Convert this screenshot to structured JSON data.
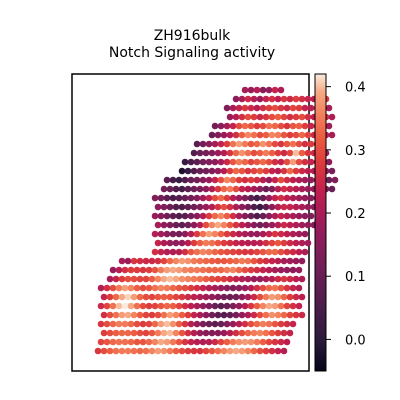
{
  "chart_data": {
    "type": "heatmap",
    "title": "ZH916bulk",
    "subtitle": "Notch Signaling activity",
    "colormap": "rocket",
    "colorbar": {
      "range": [
        -0.05,
        0.42
      ],
      "ticks": [
        {
          "value": 0.4,
          "label": "0.4"
        },
        {
          "value": 0.3,
          "label": "0.3"
        },
        {
          "value": 0.2,
          "label": "0.2"
        },
        {
          "value": 0.1,
          "label": "0.1"
        },
        {
          "value": 0.0,
          "label": "0.0"
        }
      ]
    },
    "spots_grid": {
      "rows": [
        {
          "row": 0,
          "cols": [
            27,
            33
          ],
          "values": [
            0.2,
            0.18,
            0.22,
            0.15,
            0.17,
            0.24,
            0.21
          ]
        },
        {
          "row": 1,
          "cols": [
            25,
            40
          ],
          "values": [
            0.16,
            0.2,
            0.25,
            0.22,
            0.18,
            0.24,
            0.26,
            0.23,
            0.27,
            0.25,
            0.28,
            0.26,
            0.24,
            0.22,
            0.25,
            0.27
          ]
        },
        {
          "row": 2,
          "cols": [
            24,
            41
          ],
          "values": [
            0.14,
            0.2,
            0.24,
            0.27,
            0.25,
            0.22,
            0.26,
            0.28,
            0.3,
            0.27,
            0.25,
            0.29,
            0.28,
            0.24,
            0.22,
            0.26,
            0.23,
            0.2
          ]
        },
        {
          "row": 3,
          "cols": [
            24,
            41
          ],
          "values": [
            0.18,
            0.22,
            0.26,
            0.3,
            0.28,
            0.25,
            0.27,
            0.3,
            0.32,
            0.29,
            0.26,
            0.28,
            0.3,
            0.26,
            0.23,
            0.27,
            0.25,
            0.21
          ]
        },
        {
          "row": 4,
          "cols": [
            22,
            41
          ],
          "values": [
            0.12,
            0.16,
            0.2,
            0.24,
            0.3,
            0.33,
            0.31,
            0.28,
            0.3,
            0.34,
            0.33,
            0.3,
            0.27,
            0.31,
            0.32,
            0.28,
            0.24,
            0.26,
            0.22,
            0.19
          ]
        },
        {
          "row": 5,
          "cols": [
            21,
            41
          ],
          "values": [
            0.1,
            0.14,
            0.18,
            0.22,
            0.26,
            0.32,
            0.36,
            0.34,
            0.3,
            0.32,
            0.36,
            0.35,
            0.31,
            0.28,
            0.3,
            0.33,
            0.29,
            0.25,
            0.27,
            0.23,
            0.2
          ]
        },
        {
          "row": 6,
          "cols": [
            19,
            40
          ],
          "values": [
            0.08,
            0.12,
            0.16,
            0.2,
            0.24,
            0.28,
            0.34,
            0.38,
            0.35,
            0.31,
            0.33,
            0.37,
            0.34,
            0.3,
            0.27,
            0.31,
            0.34,
            0.3,
            0.26,
            0.28,
            0.24,
            0.21
          ]
        },
        {
          "row": 7,
          "cols": [
            18,
            40
          ],
          "values": [
            0.06,
            0.1,
            0.12,
            0.15,
            0.18,
            0.22,
            0.27,
            0.33,
            0.37,
            0.34,
            0.3,
            0.32,
            0.35,
            0.32,
            0.28,
            0.25,
            0.29,
            0.4,
            0.32,
            0.27,
            0.25,
            0.22,
            0.18
          ]
        },
        {
          "row": 8,
          "cols": [
            17,
            41
          ],
          "values": [
            0.02,
            0.05,
            0.08,
            0.12,
            0.14,
            0.16,
            0.2,
            0.25,
            0.31,
            0.35,
            0.33,
            0.29,
            0.31,
            0.33,
            0.3,
            0.26,
            0.24,
            0.3,
            0.38,
            0.3,
            0.26,
            0.24,
            0.22,
            0.19,
            0.16
          ]
        },
        {
          "row": 9,
          "cols": [
            16,
            41
          ],
          "values": [
            -0.02,
            0.02,
            0.06,
            0.1,
            0.12,
            0.14,
            0.17,
            0.22,
            0.28,
            0.33,
            0.31,
            0.27,
            0.29,
            0.31,
            0.28,
            0.24,
            0.22,
            0.27,
            0.33,
            0.28,
            0.25,
            0.23,
            0.21,
            0.18,
            0.15,
            0.13
          ]
        },
        {
          "row": 10,
          "cols": [
            14,
            42
          ],
          "values": [
            0.08,
            0.04,
            0.02,
            0.06,
            0.1,
            0.12,
            0.15,
            0.18,
            0.24,
            0.3,
            0.36,
            0.33,
            0.28,
            0.26,
            0.28,
            0.26,
            0.22,
            0.18,
            0.24,
            0.3,
            0.26,
            0.23,
            0.21,
            0.19,
            0.17,
            0.15,
            0.12,
            0.1,
            0.14
          ]
        },
        {
          "row": 11,
          "cols": [
            13,
            41
          ],
          "values": [
            0.12,
            0.1,
            0.06,
            0.04,
            0.08,
            0.11,
            0.13,
            0.16,
            0.21,
            0.27,
            0.33,
            0.35,
            0.3,
            0.24,
            0.22,
            0.2,
            0.16,
            0.1,
            0.14,
            0.22,
            0.26,
            0.24,
            0.22,
            0.2,
            0.18,
            0.16,
            0.14,
            0.12,
            0.1
          ]
        },
        {
          "row": 12,
          "cols": [
            12,
            40
          ],
          "values": [
            0.14,
            0.12,
            0.08,
            0.05,
            0.07,
            0.1,
            0.12,
            0.15,
            0.19,
            0.24,
            0.3,
            0.33,
            0.28,
            0.22,
            0.18,
            0.14,
            0.08,
            0.04,
            0.1,
            0.18,
            0.24,
            0.26,
            0.23,
            0.21,
            0.19,
            0.17,
            0.15,
            0.13,
            0.11
          ]
        },
        {
          "row": 13,
          "cols": [
            12,
            39
          ],
          "values": [
            0.16,
            0.14,
            0.1,
            0.06,
            0.06,
            0.09,
            0.11,
            0.14,
            0.18,
            0.22,
            0.27,
            0.3,
            0.26,
            0.21,
            0.16,
            0.12,
            0.06,
            0.02,
            0.08,
            0.16,
            0.22,
            0.25,
            0.24,
            0.22,
            0.2,
            0.18,
            0.16,
            0.14
          ]
        },
        {
          "row": 14,
          "cols": [
            12,
            38
          ],
          "values": [
            0.18,
            0.15,
            0.12,
            0.08,
            0.06,
            0.08,
            0.12,
            0.16,
            0.22,
            0.28,
            0.33,
            0.36,
            0.32,
            0.26,
            0.2,
            0.15,
            0.1,
            0.06,
            0.1,
            0.16,
            0.21,
            0.24,
            0.22,
            0.2,
            0.18,
            0.16,
            0.14
          ]
        },
        {
          "row": 15,
          "cols": [
            12,
            38
          ],
          "values": [
            0.2,
            0.17,
            0.14,
            0.1,
            0.08,
            0.11,
            0.16,
            0.22,
            0.3,
            0.36,
            0.39,
            0.36,
            0.31,
            0.27,
            0.23,
            0.19,
            0.15,
            0.12,
            0.14,
            0.18,
            0.22,
            0.25,
            0.23,
            0.21,
            0.19,
            0.17,
            0.15
          ]
        },
        {
          "row": 16,
          "cols": [
            12,
            37
          ],
          "values": [
            0.22,
            0.19,
            0.16,
            0.13,
            0.12,
            0.16,
            0.22,
            0.28,
            0.34,
            0.38,
            0.36,
            0.32,
            0.28,
            0.25,
            0.22,
            0.2,
            0.18,
            0.17,
            0.2,
            0.24,
            0.27,
            0.25,
            0.23,
            0.21,
            0.19,
            0.17
          ]
        },
        {
          "row": 17,
          "cols": [
            12,
            37
          ],
          "values": [
            0.24,
            0.21,
            0.18,
            0.16,
            0.17,
            0.22,
            0.28,
            0.32,
            0.35,
            0.34,
            0.31,
            0.28,
            0.26,
            0.24,
            0.23,
            0.22,
            0.22,
            0.23,
            0.26,
            0.29,
            0.31,
            0.28,
            0.25,
            0.23,
            0.21,
            0.19
          ]
        },
        {
          "row": 18,
          "cols": [
            12,
            37
          ],
          "values": [
            0.26,
            0.24,
            0.22,
            0.21,
            0.22,
            0.26,
            0.31,
            0.34,
            0.36,
            0.35,
            0.33,
            0.31,
            0.3,
            0.29,
            0.28,
            0.27,
            0.27,
            0.29,
            0.31,
            0.33,
            0.33,
            0.3,
            0.27,
            0.25,
            0.23,
            0.21
          ]
        },
        {
          "row": 19,
          "cols": [
            6,
            36
          ],
          "values": [
            0.2,
            0.18,
            0.27,
            0.26,
            0.25,
            0.25,
            0.26,
            0.29,
            0.33,
            0.36,
            0.38,
            0.37,
            0.35,
            0.34,
            0.33,
            0.32,
            0.31,
            0.31,
            0.32,
            0.33,
            0.35,
            0.34,
            0.31,
            0.28,
            0.26,
            0.24,
            0.22,
            0.2,
            0.19,
            0.18,
            0.17
          ]
        },
        {
          "row": 20,
          "cols": [
            5,
            36
          ],
          "values": [
            0.18,
            0.22,
            0.26,
            0.28,
            0.28,
            0.27,
            0.28,
            0.31,
            0.35,
            0.38,
            0.39,
            0.38,
            0.36,
            0.35,
            0.35,
            0.34,
            0.33,
            0.33,
            0.33,
            0.35,
            0.36,
            0.33,
            0.3,
            0.28,
            0.26,
            0.24,
            0.22,
            0.2,
            0.18,
            0.17,
            0.16,
            0.18
          ]
        },
        {
          "row": 21,
          "cols": [
            4,
            36
          ],
          "values": [
            0.2,
            0.24,
            0.28,
            0.3,
            0.3,
            0.29,
            0.29,
            0.32,
            0.36,
            0.39,
            0.4,
            0.39,
            0.37,
            0.36,
            0.35,
            0.34,
            0.32,
            0.3,
            0.29,
            0.28,
            0.26,
            0.24,
            0.22,
            0.2,
            0.18,
            0.18,
            0.2,
            0.22,
            0.25,
            0.27,
            0.25,
            0.23,
            0.21
          ]
        },
        {
          "row": 22,
          "cols": [
            3,
            36
          ],
          "values": [
            0.22,
            0.26,
            0.3,
            0.35,
            0.38,
            0.36,
            0.32,
            0.3,
            0.31,
            0.34,
            0.36,
            0.35,
            0.33,
            0.31,
            0.3,
            0.28,
            0.26,
            0.24,
            0.22,
            0.2,
            0.18,
            0.16,
            0.14,
            0.16,
            0.18,
            0.22,
            0.26,
            0.3,
            0.33,
            0.34,
            0.31,
            0.27,
            0.24,
            0.22
          ]
        },
        {
          "row": 23,
          "cols": [
            3,
            36
          ],
          "values": [
            0.24,
            0.28,
            0.33,
            0.39,
            0.41,
            0.38,
            0.33,
            0.3,
            0.29,
            0.31,
            0.32,
            0.31,
            0.29,
            0.27,
            0.25,
            0.23,
            0.21,
            0.19,
            0.17,
            0.15,
            0.12,
            0.1,
            0.12,
            0.16,
            0.2,
            0.25,
            0.3,
            0.35,
            0.38,
            0.37,
            0.33,
            0.28,
            0.25,
            0.23
          ]
        },
        {
          "row": 24,
          "cols": [
            3,
            36
          ],
          "values": [
            0.25,
            0.29,
            0.34,
            0.4,
            0.42,
            0.39,
            0.34,
            0.3,
            0.28,
            0.29,
            0.31,
            0.33,
            0.32,
            0.29,
            0.26,
            0.23,
            0.2,
            0.17,
            0.14,
            0.1,
            0.08,
            0.1,
            0.14,
            0.18,
            0.22,
            0.27,
            0.32,
            0.36,
            0.39,
            0.38,
            0.34,
            0.29,
            0.26,
            0.24
          ]
        },
        {
          "row": 25,
          "cols": [
            3,
            36
          ],
          "values": [
            0.26,
            0.3,
            0.34,
            0.38,
            0.39,
            0.36,
            0.32,
            0.29,
            0.28,
            0.3,
            0.34,
            0.38,
            0.36,
            0.32,
            0.28,
            0.24,
            0.2,
            0.16,
            0.12,
            0.08,
            0.07,
            0.09,
            0.13,
            0.17,
            0.21,
            0.25,
            0.3,
            0.34,
            0.37,
            0.36,
            0.33,
            0.29,
            0.27,
            0.25
          ]
        },
        {
          "row": 26,
          "cols": [
            3,
            35
          ],
          "values": [
            0.27,
            0.3,
            0.33,
            0.35,
            0.35,
            0.33,
            0.3,
            0.28,
            0.29,
            0.33,
            0.38,
            0.4,
            0.37,
            0.32,
            0.27,
            0.22,
            0.18,
            0.13,
            0.1,
            0.08,
            0.1,
            0.14,
            0.18,
            0.22,
            0.26,
            0.3,
            0.33,
            0.35,
            0.34,
            0.31,
            0.28,
            0.26,
            0.24
          ]
        },
        {
          "row": 27,
          "cols": [
            3,
            34
          ],
          "values": [
            0.28,
            0.3,
            0.32,
            0.33,
            0.33,
            0.32,
            0.3,
            0.29,
            0.31,
            0.35,
            0.39,
            0.4,
            0.36,
            0.31,
            0.26,
            0.22,
            0.18,
            0.15,
            0.14,
            0.15,
            0.18,
            0.22,
            0.26,
            0.3,
            0.33,
            0.35,
            0.36,
            0.34,
            0.31,
            0.28,
            0.26,
            0.24
          ]
        },
        {
          "row": 28,
          "cols": [
            3,
            34
          ],
          "values": [
            0.29,
            0.31,
            0.33,
            0.34,
            0.34,
            0.33,
            0.31,
            0.31,
            0.33,
            0.36,
            0.39,
            0.38,
            0.35,
            0.31,
            0.27,
            0.24,
            0.22,
            0.21,
            0.22,
            0.25,
            0.29,
            0.32,
            0.35,
            0.37,
            0.38,
            0.37,
            0.35,
            0.32,
            0.29,
            0.27,
            0.25,
            0.23
          ]
        },
        {
          "row": 29,
          "cols": [
            2,
            33
          ],
          "values": [
            0.27,
            0.3,
            0.32,
            0.34,
            0.35,
            0.35,
            0.34,
            0.33,
            0.34,
            0.36,
            0.38,
            0.37,
            0.35,
            0.32,
            0.3,
            0.28,
            0.27,
            0.27,
            0.29,
            0.31,
            0.34,
            0.36,
            0.38,
            0.39,
            0.38,
            0.36,
            0.33,
            0.3,
            0.28,
            0.26,
            0.24,
            0.22
          ]
        }
      ]
    }
  }
}
